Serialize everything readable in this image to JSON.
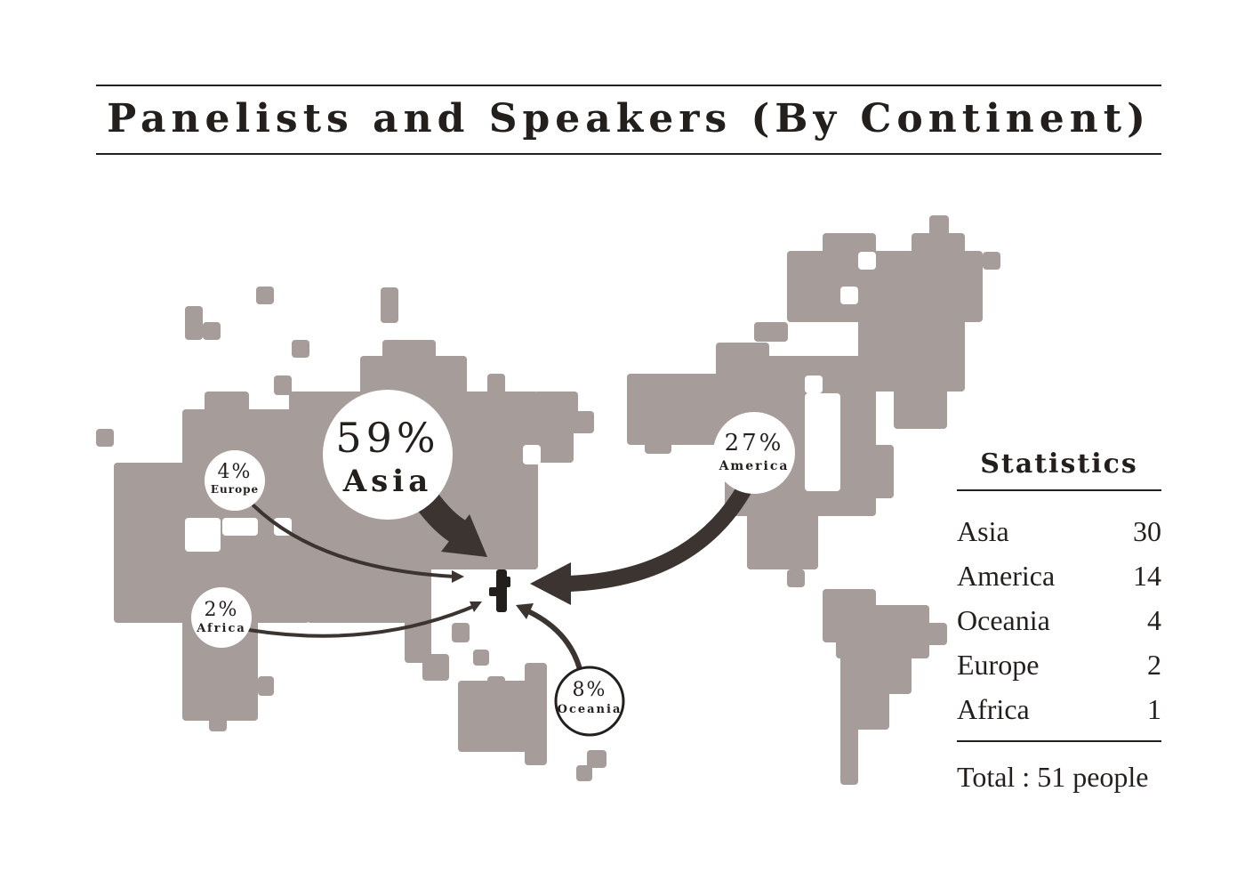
{
  "title": "Panelists and Speakers (By Continent)",
  "colors": {
    "land": "#a69c9a",
    "ink": "#3b3430",
    "text": "#231f1c",
    "background": "#ffffff"
  },
  "callouts": [
    {
      "id": "asia",
      "percent": "59%",
      "label": "Asia"
    },
    {
      "id": "america",
      "percent": "27%",
      "label": "America"
    },
    {
      "id": "europe",
      "percent": "4%",
      "label": "Europe"
    },
    {
      "id": "africa",
      "percent": "2%",
      "label": "Africa"
    },
    {
      "id": "oceania",
      "percent": "8%",
      "label": "Oceania"
    }
  ],
  "stats": {
    "heading": "Statistics",
    "rows": [
      {
        "label": "Asia",
        "value": "30"
      },
      {
        "label": "America",
        "value": "14"
      },
      {
        "label": "Oceania",
        "value": "4"
      },
      {
        "label": "Europe",
        "value": "2"
      },
      {
        "label": "Africa",
        "value": "1"
      }
    ],
    "total": "Total : 51 people"
  }
}
